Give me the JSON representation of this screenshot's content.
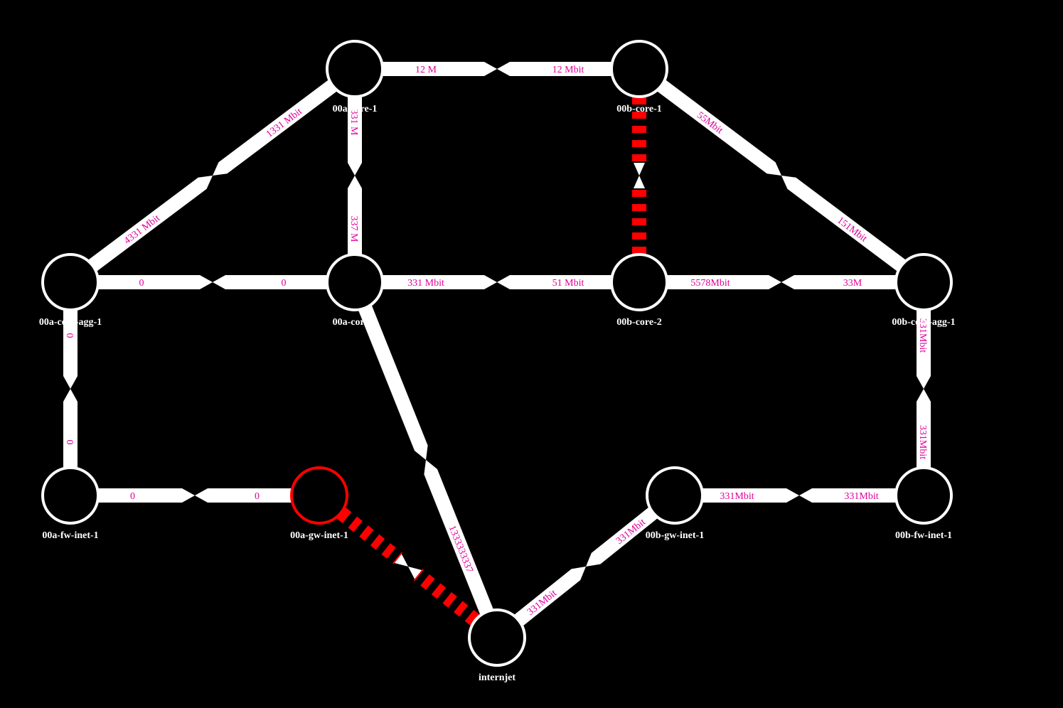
{
  "colors": {
    "background": "#000000",
    "link": "#ffffff",
    "link_down": "#ff0000",
    "label": "#e0009a",
    "node_fill": "#000000",
    "node_stroke": "#ffffff",
    "node_stroke_down": "#ff0000"
  },
  "nodes": [
    {
      "id": "a_core1",
      "label": "00a-core-1",
      "down": false
    },
    {
      "id": "b_core1",
      "label": "00b-core-1",
      "down": false
    },
    {
      "id": "a_agg1",
      "label": "00a-core-agg-1",
      "down": false
    },
    {
      "id": "a_core2",
      "label": "00a-core-2",
      "down": false
    },
    {
      "id": "b_core2",
      "label": "00b-core-2",
      "down": false
    },
    {
      "id": "b_agg1",
      "label": "00b-core-agg-1",
      "down": false
    },
    {
      "id": "a_fw",
      "label": "00a-fw-inet-1",
      "down": false
    },
    {
      "id": "a_gw",
      "label": "00a-gw-inet-1",
      "down": true
    },
    {
      "id": "b_gw",
      "label": "00b-gw-inet-1",
      "down": false
    },
    {
      "id": "b_fw",
      "label": "00b-fw-inet-1",
      "down": false
    },
    {
      "id": "inet",
      "label": "internjet",
      "down": false
    }
  ],
  "links": [
    {
      "from": "a_core1",
      "to": "b_core1",
      "label_from": "12 M",
      "label_to": "12 Mbit",
      "down": false
    },
    {
      "from": "a_agg1",
      "to": "a_core1",
      "label_from": "4331 Mbit",
      "label_to": "1331 Mbit",
      "down": false
    },
    {
      "from": "a_core1",
      "to": "a_core2",
      "label_from": "331 M",
      "label_to": "337 M",
      "down": false
    },
    {
      "from": "b_core1",
      "to": "b_core2",
      "label_from": "",
      "label_to": "",
      "down": true
    },
    {
      "from": "b_core1",
      "to": "b_agg1",
      "label_from": "55Mbit",
      "label_to": "151Mbit",
      "down": false
    },
    {
      "from": "a_agg1",
      "to": "a_core2",
      "label_from": "0",
      "label_to": "0",
      "down": false
    },
    {
      "from": "a_core2",
      "to": "b_core2",
      "label_from": "331 Mbit",
      "label_to": "51 Mbit",
      "down": false
    },
    {
      "from": "b_core2",
      "to": "b_agg1",
      "label_from": "5578Mbit",
      "label_to": "33M",
      "down": false
    },
    {
      "from": "a_agg1",
      "to": "a_fw",
      "label_from": "0",
      "label_to": "0",
      "down": false
    },
    {
      "from": "b_agg1",
      "to": "b_fw",
      "label_from": "331Mbit",
      "label_to": "331Mbit",
      "down": false
    },
    {
      "from": "a_fw",
      "to": "a_gw",
      "label_from": "0",
      "label_to": "0",
      "down": false
    },
    {
      "from": "b_gw",
      "to": "b_fw",
      "label_from": "331Mbit",
      "label_to": "331Mbit",
      "down": false
    },
    {
      "from": "a_gw",
      "to": "inet",
      "label_from": "",
      "label_to": "",
      "down": true
    },
    {
      "from": "a_core2",
      "to": "inet",
      "label_from": "",
      "label_to": "1333333337",
      "down": false
    },
    {
      "from": "inet",
      "to": "b_gw",
      "label_from": "331Mbit",
      "label_to": "331Mbit",
      "down": false
    }
  ]
}
